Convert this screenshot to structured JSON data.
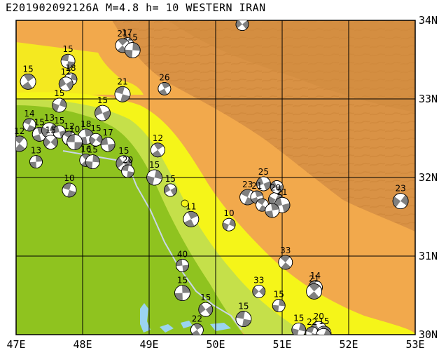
{
  "title": "E201902092126A M=4.8 h= 10 WESTERN IRAN",
  "colors": {
    "lowland_green": "#8fc31f",
    "lowland_light": "#c5e04a",
    "yellow_band": "#f5f519",
    "foothill_orange": "#f2a94c",
    "mountain_brown": "#d99245",
    "water": "#9bd4f0",
    "border_line": "#c9d6e8",
    "grid": "#000000",
    "beachball_dark": "#808080",
    "beachball_light": "#ffffff"
  },
  "axes": {
    "lon_labels": [
      "47E",
      "48E",
      "49E",
      "50E",
      "51E",
      "52E",
      "53E"
    ],
    "lat_labels": [
      "34N",
      "33N",
      "32N",
      "31N",
      "30N"
    ],
    "lon_range": [
      47,
      53
    ],
    "lat_range": [
      30,
      34
    ]
  },
  "events": [
    {
      "depth": "17",
      "lon": 48.67,
      "lat": 33.7
    },
    {
      "depth": "21",
      "lon": 48.6,
      "lat": 33.68
    },
    {
      "depth": "15",
      "lon": 48.75,
      "lat": 33.62
    },
    {
      "depth": "",
      "lon": 50.4,
      "lat": 33.95
    },
    {
      "depth": "15",
      "lon": 47.78,
      "lat": 33.48
    },
    {
      "depth": "15",
      "lon": 47.18,
      "lat": 33.22
    },
    {
      "depth": "18",
      "lon": 47.82,
      "lat": 33.25
    },
    {
      "depth": "12",
      "lon": 47.75,
      "lat": 33.19
    },
    {
      "depth": "21",
      "lon": 48.6,
      "lat": 33.06
    },
    {
      "depth": "26",
      "lon": 49.23,
      "lat": 33.13
    },
    {
      "depth": "15",
      "lon": 47.65,
      "lat": 32.92
    },
    {
      "depth": "15",
      "lon": 48.3,
      "lat": 32.82
    },
    {
      "depth": "14",
      "lon": 47.2,
      "lat": 32.67
    },
    {
      "depth": "15",
      "lon": 47.35,
      "lat": 32.55
    },
    {
      "depth": "13",
      "lon": 47.5,
      "lat": 32.6
    },
    {
      "depth": "15",
      "lon": 47.65,
      "lat": 32.58
    },
    {
      "depth": "12",
      "lon": 47.8,
      "lat": 32.5
    },
    {
      "depth": "18",
      "lon": 48.05,
      "lat": 32.52
    },
    {
      "depth": "15",
      "lon": 48.2,
      "lat": 32.48
    },
    {
      "depth": "17",
      "lon": 48.38,
      "lat": 32.42
    },
    {
      "depth": "12",
      "lon": 47.05,
      "lat": 32.43
    },
    {
      "depth": "13",
      "lon": 47.3,
      "lat": 32.2
    },
    {
      "depth": "15",
      "lon": 47.52,
      "lat": 32.45
    },
    {
      "depth": "10",
      "lon": 47.88,
      "lat": 32.45
    },
    {
      "depth": "16",
      "lon": 48.05,
      "lat": 32.22
    },
    {
      "depth": "15",
      "lon": 48.15,
      "lat": 32.2
    },
    {
      "depth": "15",
      "lon": 48.62,
      "lat": 32.18
    },
    {
      "depth": "20",
      "lon": 48.68,
      "lat": 32.08
    },
    {
      "depth": "12",
      "lon": 49.13,
      "lat": 32.35
    },
    {
      "depth": "15",
      "lon": 49.08,
      "lat": 32.0
    },
    {
      "depth": "15",
      "lon": 49.32,
      "lat": 31.84
    },
    {
      "depth": "10",
      "lon": 47.8,
      "lat": 31.84
    },
    {
      "depth": "11",
      "lon": 49.63,
      "lat": 31.47
    },
    {
      "depth": "10",
      "lon": 50.2,
      "lat": 31.4
    },
    {
      "depth": "25",
      "lon": 50.72,
      "lat": 31.92
    },
    {
      "depth": "23",
      "lon": 50.48,
      "lat": 31.75
    },
    {
      "depth": "21",
      "lon": 50.62,
      "lat": 31.75
    },
    {
      "depth": "20",
      "lon": 50.9,
      "lat": 31.72
    },
    {
      "depth": "21",
      "lon": 51.0,
      "lat": 31.65
    },
    {
      "depth": "",
      "lon": 50.7,
      "lat": 31.65
    },
    {
      "depth": "",
      "lon": 50.85,
      "lat": 31.58
    },
    {
      "depth": "23",
      "lon": 52.78,
      "lat": 31.7
    },
    {
      "depth": "40",
      "lon": 49.5,
      "lat": 30.88
    },
    {
      "depth": "33",
      "lon": 51.05,
      "lat": 30.92
    },
    {
      "depth": "15",
      "lon": 49.5,
      "lat": 30.53
    },
    {
      "depth": "33",
      "lon": 50.65,
      "lat": 30.55
    },
    {
      "depth": "14",
      "lon": 51.5,
      "lat": 30.6
    },
    {
      "depth": "21",
      "lon": 51.48,
      "lat": 30.55
    },
    {
      "depth": "15",
      "lon": 50.95,
      "lat": 30.37
    },
    {
      "depth": "15",
      "lon": 49.85,
      "lat": 30.32
    },
    {
      "depth": "15",
      "lon": 50.42,
      "lat": 30.2
    },
    {
      "depth": "22",
      "lon": 49.72,
      "lat": 30.06
    },
    {
      "depth": "15",
      "lon": 51.25,
      "lat": 30.06
    },
    {
      "depth": "20",
      "lon": 51.55,
      "lat": 30.07
    },
    {
      "depth": "22",
      "lon": 51.45,
      "lat": 30.02
    },
    {
      "depth": "15",
      "lon": 51.63,
      "lat": 30.02
    },
    {
      "depth": "",
      "lon": 51.62,
      "lat": 29.98
    },
    {
      "depth": "",
      "lon": 50.92,
      "lat": 31.88
    }
  ]
}
